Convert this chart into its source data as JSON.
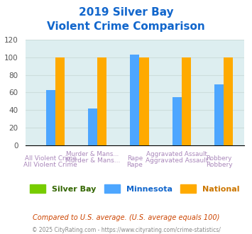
{
  "title_line1": "2019 Silver Bay",
  "title_line2": "Violent Crime Comparison",
  "categories": [
    "All Violent Crime",
    "Murder & Mans...",
    "Rape",
    "Aggravated Assault",
    "Robbery"
  ],
  "series": {
    "Silver Bay": [
      0,
      0,
      0,
      0,
      0
    ],
    "Minnesota": [
      63,
      42,
      103,
      55,
      69
    ],
    "National": [
      100,
      100,
      100,
      100,
      100
    ]
  },
  "colors": {
    "Silver Bay": "#77cc00",
    "Minnesota": "#4da6ff",
    "National": "#ffaa00"
  },
  "ylim": [
    0,
    120
  ],
  "yticks": [
    0,
    20,
    40,
    60,
    80,
    100,
    120
  ],
  "grid_color": "#ccdddd",
  "bg_color": "#ddeef0",
  "title_color": "#1166cc",
  "legend_label_color_silver": "#336600",
  "legend_label_color_mn": "#1166cc",
  "legend_label_color_nat": "#cc7700",
  "footnote1": "Compared to U.S. average. (U.S. average equals 100)",
  "footnote2": "© 2025 CityRating.com - https://www.cityrating.com/crime-statistics/",
  "footnote1_color": "#cc4400",
  "footnote2_color": "#888888"
}
